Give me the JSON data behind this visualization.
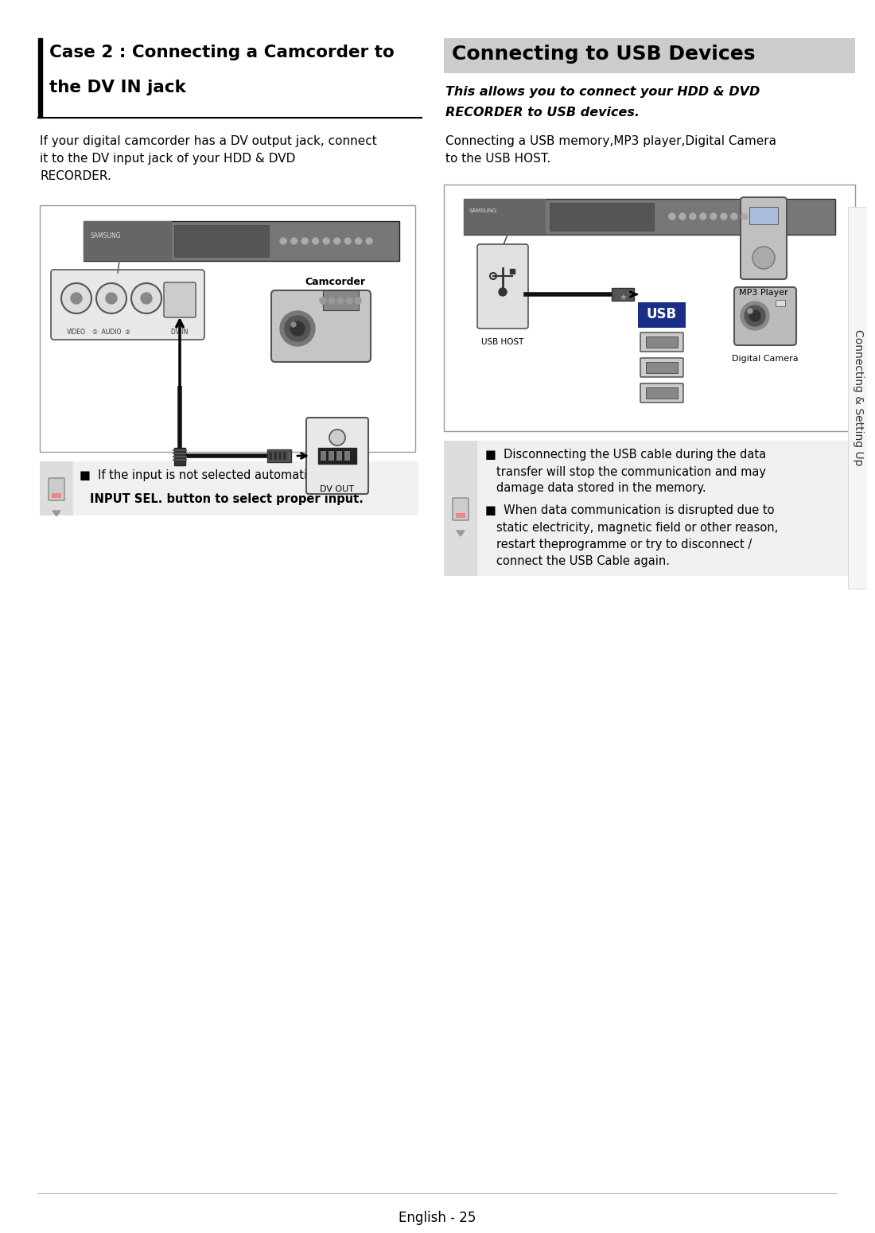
{
  "bg_color": "#ffffff",
  "left_title_line1": "Case 2 : Connecting a Camcorder to",
  "left_title_line2": "the DV IN jack",
  "left_body": "If your digital camcorder has a DV output jack, connect\nit to the DV input jack of your HDD & DVD\nRECORDER.",
  "right_header_bg": "#cccccc",
  "right_title": "Connecting to USB Devices",
  "right_italic1": "This allows you to connect your HDD & DVD",
  "right_italic2": "RECORDER to USB devices.",
  "right_body": "Connecting a USB memory,MP3 player,Digital Camera\nto the USB HOST.",
  "left_note1_normal": "■  If the input is not selected automatically, use",
  "left_note1_bold": "INPUT SEL. button to select proper input.",
  "right_note1": "■  Disconnecting the USB cable during the data\n    transfer will stop the communication and may\n    damage data stored in the memory.",
  "right_note2": "■  When data communication is disrupted due to\n    static electricity, magnetic field or other reason,\n    restart theprogramme or try to disconnect /\n    connect the USB Cable again.",
  "footer": "English - 25",
  "sidebar": "Connecting & Setting Up",
  "title_bar_color": "#000000",
  "title_underline_color": "#000000",
  "diagram_border": "#999999",
  "diagram_bg": "#ffffff",
  "recorder_color": "#888888",
  "note_icon_bg": "#dddddd",
  "note_section_bg": "#f0f0f0",
  "usb_blue": "#1a2e88"
}
